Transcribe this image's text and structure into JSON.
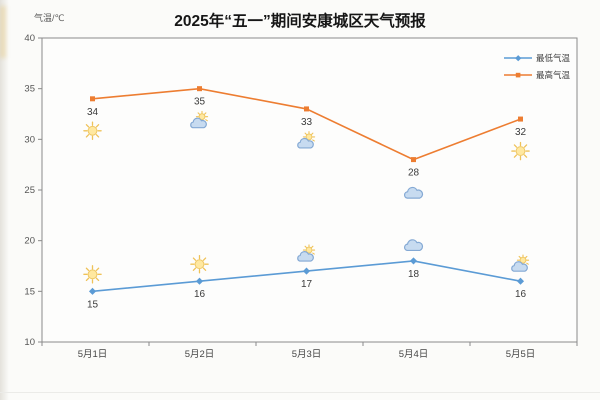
{
  "page": {
    "background": "#fbfbf9"
  },
  "chart_data": {
    "type": "line",
    "title": "2025年“五一”期间安康城区天气预报",
    "y_axis_label": "气温/℃",
    "categories": [
      "5月1日",
      "5月2日",
      "5月3日",
      "5月4日",
      "5月5日"
    ],
    "series": [
      {
        "name": "最低气温",
        "values": [
          15,
          16,
          17,
          18,
          16
        ],
        "color": "#5B9BD5",
        "marker": "diamond",
        "icons": [
          "sun",
          "sun",
          "partly-cloudy",
          "cloud",
          "partly-cloudy"
        ],
        "icon_side": "above"
      },
      {
        "name": "最高气温",
        "values": [
          34,
          35,
          33,
          28,
          32
        ],
        "color": "#ED7D31",
        "marker": "square",
        "icons": [
          "sun",
          "partly-cloudy",
          "partly-cloudy",
          "cloud",
          "sun"
        ],
        "icon_side": "below"
      }
    ],
    "ylim": [
      10,
      40
    ],
    "y_ticks": [
      40,
      35,
      30,
      25,
      20,
      15,
      10
    ],
    "grid": false,
    "legend_position": "top-right",
    "data_labels": true
  },
  "style": {
    "axis_color": "#8a8a8a",
    "tick_label_color": "#555555",
    "data_label_color": "#3b3b3b",
    "sun_fill": "#FFE8A0",
    "sun_stroke": "#EFC865",
    "sun_ray": "#EFC258",
    "cloud_fill": "#C7DBF0",
    "cloud_stroke": "#84A9D4"
  }
}
